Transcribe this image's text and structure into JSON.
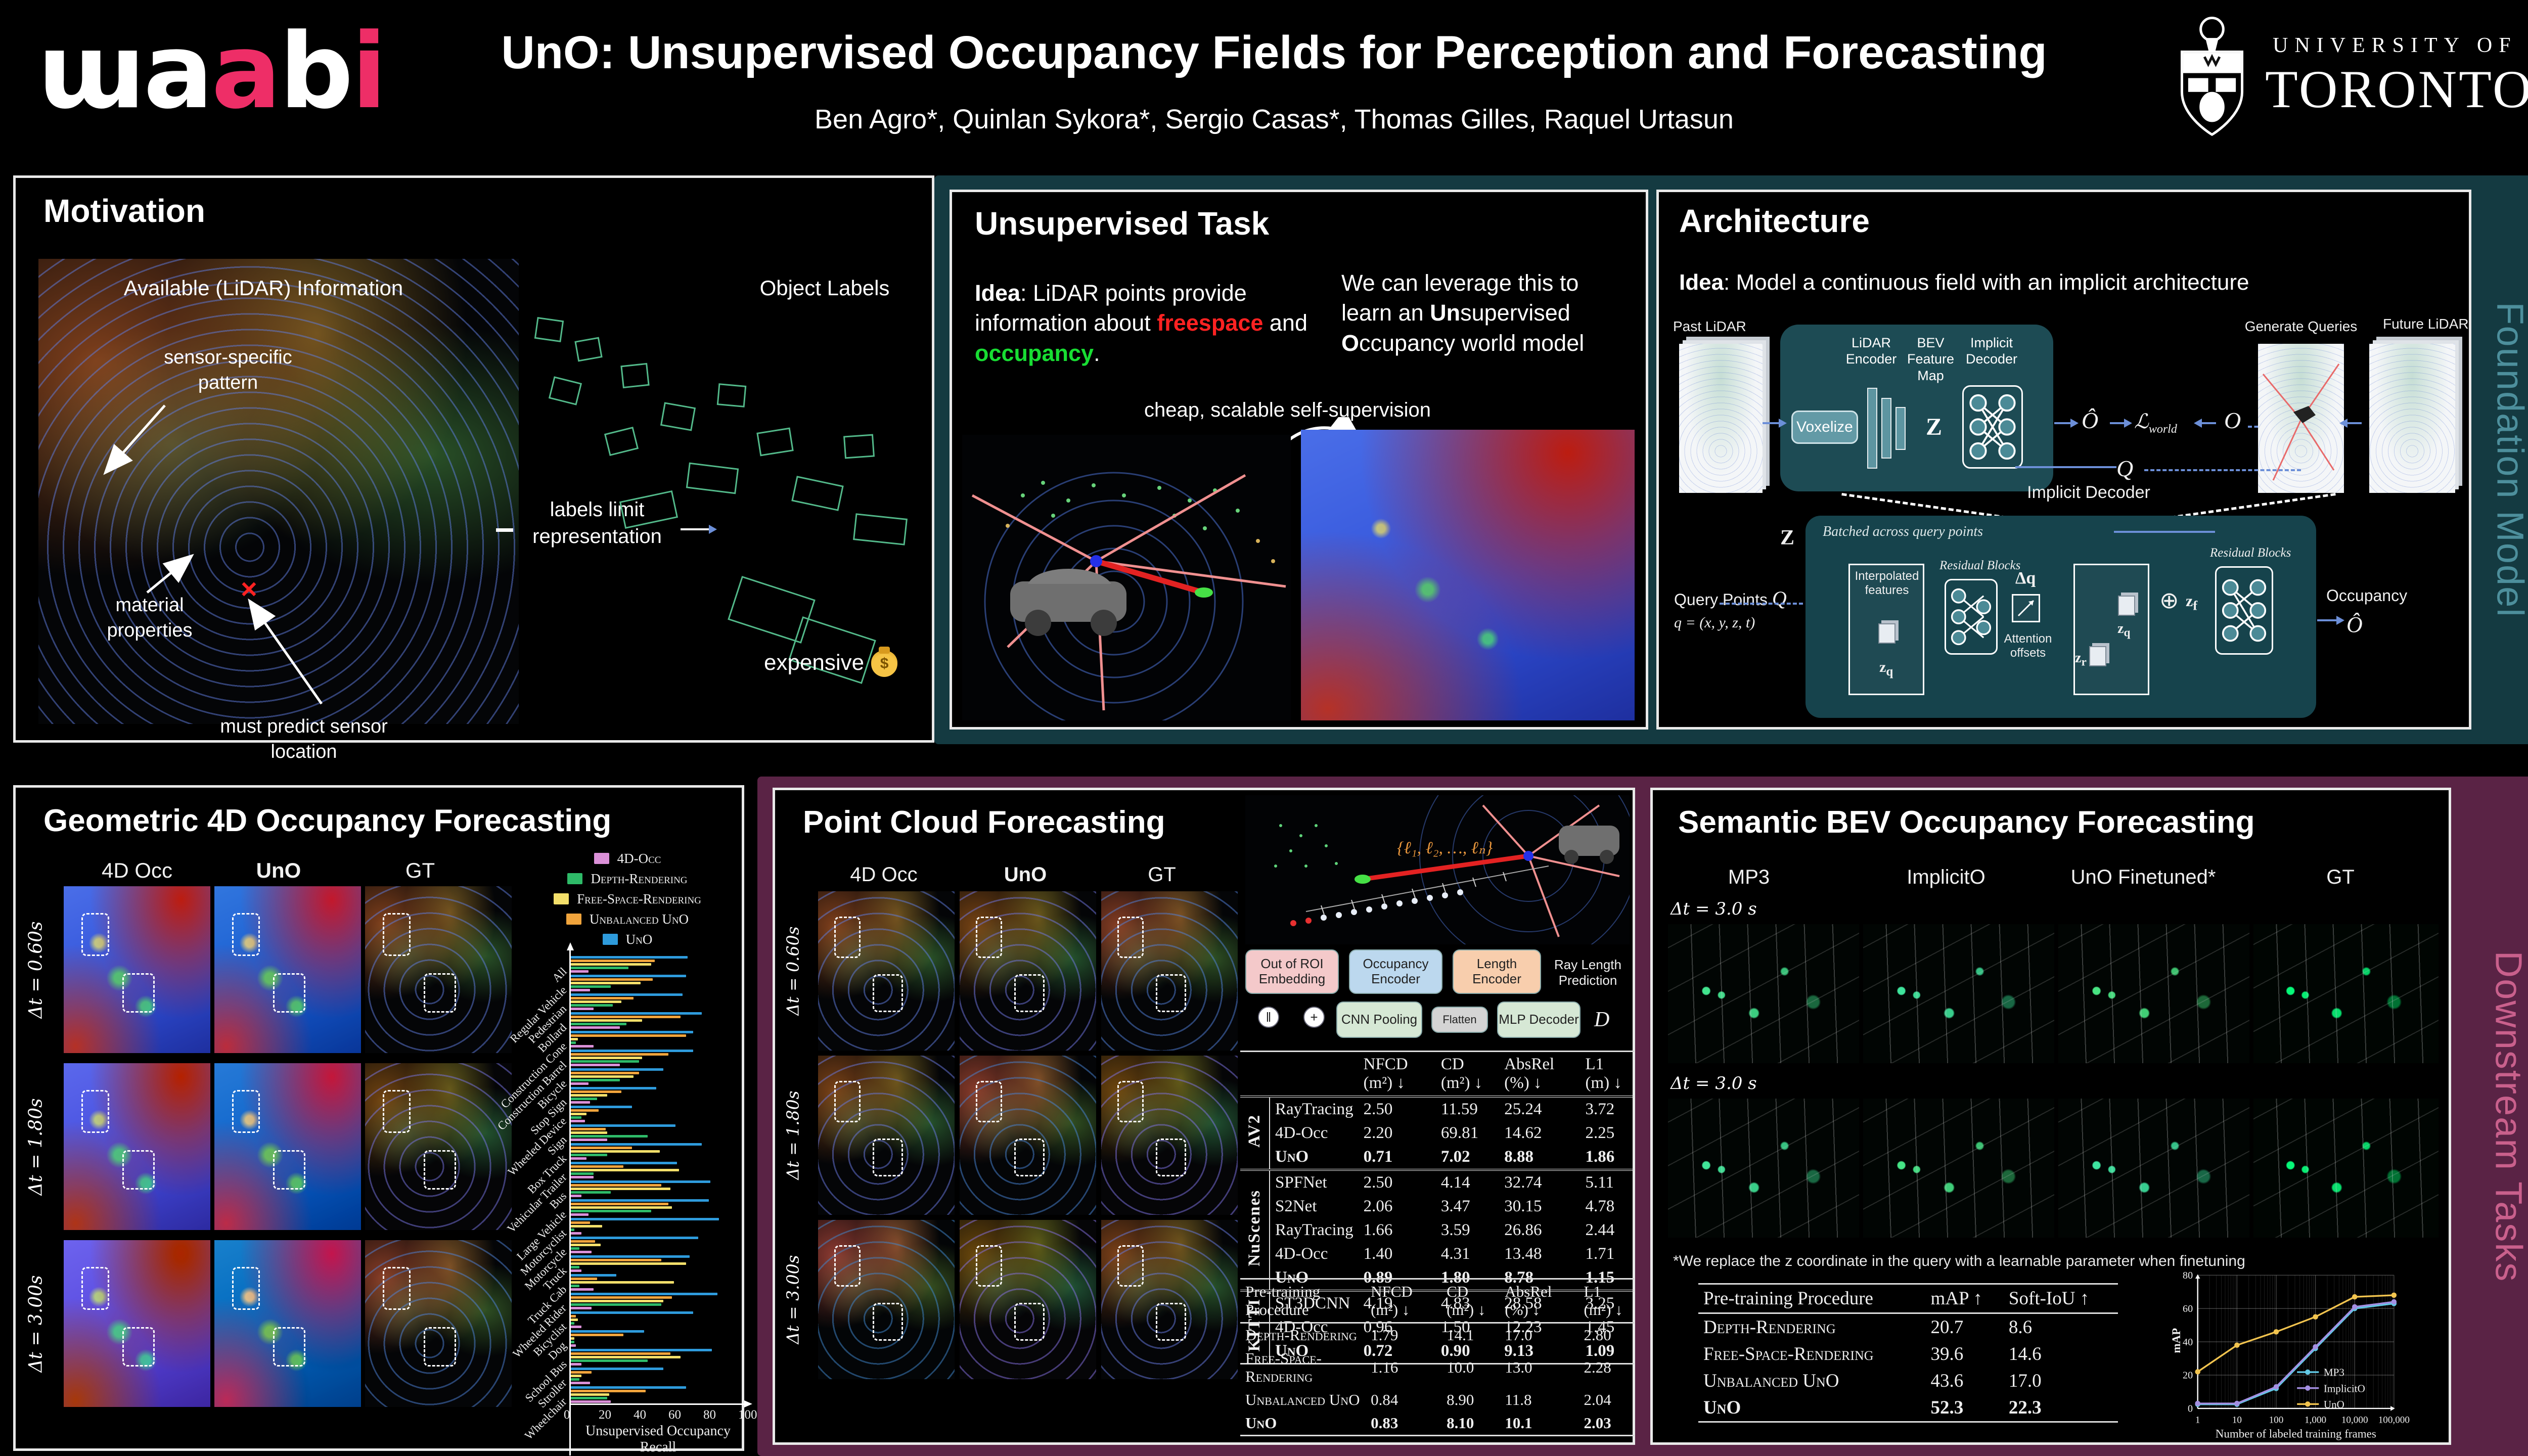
{
  "header": {
    "logo_text": "ɯaabi",
    "title": {
      "b1": "UnO",
      "t1": ": ",
      "b2": "Un",
      "t2": "supervised ",
      "b3": "O",
      "t3": "ccupancy Fields for Perception and Forecasting"
    },
    "authors": "Ben Agro*, Quinlan Sykora*, Sergio Casas*, Thomas Gilles, Raquel Urtasun",
    "affil1": "UNIVERSITY OF",
    "affil2": "TORONTO"
  },
  "side_labels": {
    "foundation": "Foundation Model",
    "downstream": "Downstream Tasks"
  },
  "motivation": {
    "title": "Motivation",
    "available": "Available (LiDAR) Information",
    "object_labels": "Object Labels",
    "sensor": "sensor-specific pattern",
    "material": "material properties",
    "predict": "must predict sensor location",
    "limit": "labels limit representation",
    "expensive": "expensive"
  },
  "ut": {
    "title": "Unsupervised Task",
    "idea_label": "Idea",
    "idea_t1": ": LiDAR points provide information about ",
    "freespace": "freespace",
    "idea_t2": " and ",
    "occupancy": "occupancy",
    "idea_t3": ".",
    "lev_t1": "We can leverage this to learn an ",
    "lev_b1": "Un",
    "lev_t2": "supervised ",
    "lev_b2": "O",
    "lev_t3": "ccupancy world model",
    "caption": "cheap, scalable self-supervision"
  },
  "arch": {
    "title": "Architecture",
    "idea_label": "Idea",
    "idea_text": ": Model a continuous field with an implicit architecture",
    "past_lidar": "Past LiDAR",
    "voxelize": "Voxelize",
    "enc_lidar": "LiDAR Encoder",
    "enc_bev": "BEV Feature Map",
    "enc_dec": "Implicit Decoder",
    "z": "Z",
    "o_hat": "Ô",
    "loss_main": "ℒ",
    "loss_sub": "world",
    "o_gt": "O",
    "gen_queries": "Generate Queries",
    "future_lidar": "Future LiDAR",
    "q": "Q",
    "detail_title": "Implicit Decoder",
    "batched": "Batched across query points",
    "interp": "Interpolated features",
    "zq_b": "z",
    "zq_s": "q",
    "rb": "Residual Blocks",
    "dq": "Δq",
    "attn": "Attention offsets",
    "zr_b": "z",
    "zr_s": "r",
    "zq2_b": "z",
    "zq2_s": "q",
    "plus": "⊕",
    "zf_b": "z",
    "zf_s": "f",
    "rb2": "Residual Blocks",
    "occupancy": "Occupancy",
    "o_hat2": "Ô",
    "qp_label": "Query Points",
    "q2": "Q",
    "q_def": "q = (x, y, z, t)"
  },
  "geo": {
    "title": "Geometric 4D Occupancy Forecasting",
    "columns": [
      "4D Occ",
      "UnO",
      "GT"
    ],
    "rows": [
      "Δt = 0.60s",
      "Δt = 1.80s",
      "Δt = 3.00s"
    ]
  },
  "pc": {
    "title": "Point Cloud Forecasting",
    "columns": [
      "4D Occ",
      "UnO",
      "GT"
    ],
    "rows": [
      "Δt = 0.60s",
      "Δt = 1.80s",
      "Δt = 3.00s"
    ],
    "diagram": {
      "lengths": "{ℓ₁, ℓ₂, …, ℓₙ}",
      "roi": "Out of ROI Embedding",
      "occ_enc": "Occupancy Encoder",
      "len_enc": "Length Encoder",
      "cnn": "CNN Pooling",
      "flatten": "Flatten",
      "mlp": "MLP Decoder",
      "d": "D",
      "ray": "Ray Length Prediction",
      "concat": "‖",
      "plus": "+"
    },
    "table": {
      "headers": [
        "NFCD (m²) ↓",
        "CD (m²) ↓",
        "AbsRel (%) ↓",
        "L1 (m) ↓"
      ],
      "groups": [
        {
          "name": "AV2",
          "rows": [
            {
              "method": "RayTracing",
              "values": [
                "2.50",
                "11.59",
                "25.24",
                "3.72"
              ]
            },
            {
              "method": "4D-Occ",
              "values": [
                "2.20",
                "69.81",
                "14.62",
                "2.25"
              ]
            },
            {
              "method": "UnO",
              "sc": true,
              "bold": true,
              "values": [
                "0.71",
                "7.02",
                "8.88",
                "1.86"
              ]
            }
          ]
        },
        {
          "name": "NuScenes",
          "rows": [
            {
              "method": "SPFNet",
              "values": [
                "2.50",
                "4.14",
                "32.74",
                "5.11"
              ]
            },
            {
              "method": "S2Net",
              "values": [
                "2.06",
                "3.47",
                "30.15",
                "4.78"
              ]
            },
            {
              "method": "RayTracing",
              "values": [
                "1.66",
                "3.59",
                "26.86",
                "2.44"
              ]
            },
            {
              "method": "4D-Occ",
              "values": [
                "1.40",
                "4.31",
                "13.48",
                "1.71"
              ]
            },
            {
              "method": "UnO",
              "sc": true,
              "bold": true,
              "values": [
                "0.89",
                "1.80",
                "8.78",
                "1.15"
              ]
            }
          ]
        },
        {
          "name": "KITTI",
          "rows": [
            {
              "method": "ST3DCNN",
              "values": [
                "4.19",
                "4.83",
                "28.58",
                "3.25"
              ]
            },
            {
              "method": "4D-Occ",
              "values": [
                "0.96",
                "1.50",
                "12.23",
                "1.45"
              ]
            },
            {
              "method": "UnO",
              "sc": true,
              "bold": true,
              "values": [
                "0.72",
                "0.90",
                "9.13",
                "1.09"
              ]
            }
          ]
        }
      ]
    },
    "pretrain_table": {
      "col0": "Pre-training Procedure",
      "headers": [
        "NFCD (m²) ↓",
        "CD (m²) ↓",
        "AbsRel (%) ↓",
        "L1 (m²) ↓"
      ],
      "rows": [
        {
          "method": "Depth-Rendering",
          "sc": true,
          "values": [
            "1.79",
            "14.1",
            "17.0",
            "2.80"
          ]
        },
        {
          "method": "Free-Space-Rendering",
          "sc": true,
          "values": [
            "1.16",
            "10.0",
            "13.0",
            "2.28"
          ]
        },
        {
          "method": "Unbalanced UnO",
          "sc": true,
          "values": [
            "0.84",
            "8.90",
            "11.8",
            "2.04"
          ]
        },
        {
          "method": "UnO",
          "sc": true,
          "bold": true,
          "values": [
            "0.83",
            "8.10",
            "10.1",
            "2.03"
          ]
        }
      ]
    }
  },
  "sem": {
    "title": "Semantic BEV Occupancy Forecasting",
    "columns": [
      "MP3",
      "ImplicitO",
      "UnO Finetuned*",
      "GT"
    ],
    "rows": [
      "Δt = 3.0 s",
      "Δt = 3.0 s"
    ],
    "footnote": "*We replace the z coordinate in the query with a learnable parameter when finetuning",
    "table": {
      "col0": "Pre-training Procedure",
      "headers": [
        "mAP ↑",
        "Soft-IoU ↑"
      ],
      "rows": [
        {
          "method": "Depth-Rendering",
          "sc": true,
          "values": [
            "20.7",
            "8.6"
          ]
        },
        {
          "method": "Free-Space-Rendering",
          "sc": true,
          "values": [
            "39.6",
            "14.6"
          ]
        },
        {
          "method": "Unbalanced UnO",
          "sc": true,
          "values": [
            "43.6",
            "17.0"
          ]
        },
        {
          "method": "UnO",
          "sc": true,
          "bold": true,
          "values": [
            "52.3",
            "22.3"
          ]
        }
      ]
    }
  },
  "chart_data": [
    {
      "type": "bar",
      "orientation": "horizontal",
      "title": "",
      "xlabel": "Unsupervised Occupancy Recall",
      "xlim": [
        0,
        100
      ],
      "x_ticks": [
        "0",
        "20",
        "40",
        "60",
        "80",
        "100"
      ],
      "legend_position": "upper right",
      "categories": [
        "All",
        "Regular Vehicle",
        "Pedestrian",
        "Bollard",
        "Construction Cone",
        "Construction Barrel",
        "Bicycle",
        "Stop Sign",
        "Wheeled Device",
        "Sign",
        "Box Truck",
        "Vehicular Trailer",
        "Bus",
        "Large Vehicle",
        "Motorcyclist",
        "Motorcycle",
        "Truck",
        "Truck Cab",
        "Wheeled Rider",
        "Bicyclist",
        "Dog",
        "School Bus",
        "Stroller",
        "Wheelchair"
      ],
      "series": [
        {
          "name": "4D-Occ",
          "color": "#da90d8",
          "values": [
            10,
            11,
            13,
            28,
            13,
            28,
            10,
            11,
            8,
            21,
            9,
            13,
            6,
            10,
            6,
            12,
            6,
            13,
            12,
            6,
            3,
            6,
            11,
            23
          ]
        },
        {
          "name": "Depth-Rendering",
          "color": "#2eba68",
          "values": [
            33,
            23,
            24,
            32,
            3,
            39,
            28,
            15,
            6,
            44,
            21,
            13,
            23,
            46,
            2,
            5,
            5,
            5,
            52,
            2,
            2,
            44,
            5,
            21
          ]
        },
        {
          "name": "Free-Space-Rendering",
          "color": "#f3df6a",
          "values": [
            46,
            40,
            29,
            41,
            4,
            41,
            36,
            21,
            9,
            21,
            51,
            62,
            57,
            58,
            18,
            17,
            66,
            59,
            53,
            4,
            2,
            63,
            6,
            22
          ]
        },
        {
          "name": "Unbalanced UnO",
          "color": "#f0a43c",
          "values": [
            48,
            47,
            36,
            63,
            66,
            56,
            39,
            29,
            16,
            20,
            35,
            30,
            52,
            56,
            11,
            14,
            52,
            15,
            58,
            3,
            30,
            57,
            12,
            43
          ]
        },
        {
          "name": "UnO",
          "color": "#2e9bdc",
          "values": [
            67,
            66,
            64,
            75,
            70,
            70,
            53,
            49,
            35,
            60,
            75,
            61,
            80,
            79,
            85,
            73,
            68,
            26,
            84,
            70,
            42,
            81,
            53,
            66
          ]
        }
      ]
    },
    {
      "type": "line",
      "xlabel": "Number of labeled training frames",
      "ylabel": "mAP",
      "x_scale": "log",
      "x": [
        1,
        10,
        100,
        1000,
        10000,
        100000
      ],
      "x_tick_labels": [
        "1",
        "10",
        "100",
        "1,000",
        "10,000",
        "100,000"
      ],
      "ylim": [
        0,
        80
      ],
      "y_ticks": [
        0,
        20,
        40,
        60,
        80
      ],
      "legend_position": "lower right",
      "series": [
        {
          "name": "MP3",
          "color": "#62c9e6",
          "values": [
            2.5,
            2.5,
            12,
            36,
            60,
            63
          ]
        },
        {
          "name": "ImplicitO",
          "color": "#a48fe2",
          "values": [
            3,
            3,
            13,
            37,
            61,
            64
          ]
        },
        {
          "name": "UnO",
          "color": "#f2c44f",
          "values": [
            22,
            38,
            46,
            55,
            67,
            68
          ]
        }
      ]
    }
  ]
}
